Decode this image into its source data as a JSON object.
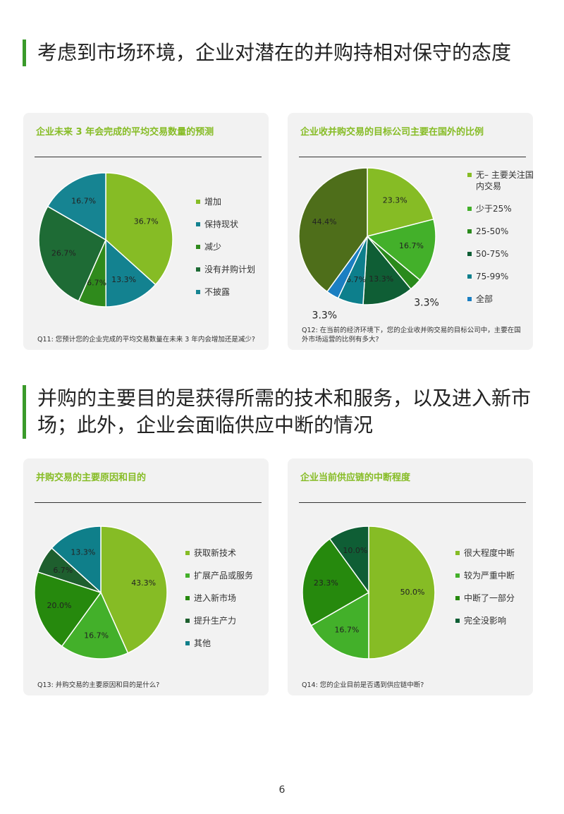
{
  "headings": [
    "考虑到市场环境，企业对潜在的并购持相对保守的态度",
    "并购的主要目的是获得所需的技术和服务，以及进入新市场；此外，企业会面临供应中断的情况"
  ],
  "chart_data": [
    {
      "type": "pie",
      "title": "企业未来 3 年会完成的平均交易数量的预测",
      "categories": [
        "增加",
        "保持现状",
        "减少",
        "没有并购计划",
        "不披露"
      ],
      "values": [
        36.7,
        13.3,
        6.7,
        26.7,
        16.7
      ],
      "value_labels": [
        "36.7%",
        "13.3%",
        "6.7%",
        "26.7%",
        "16.7%"
      ],
      "colors": [
        "#86bc25",
        "#138290",
        "#2f8a1c",
        "#1e6b35",
        "#168492"
      ],
      "note": "Q11: 您预计您的企业完成的平均交易数量在未来 3 年内会增加还是减少?"
    },
    {
      "type": "pie",
      "title": "企业收并购交易的目标公司主要在国外的比例",
      "categories": [
        "无– 主要关注国内交易",
        "少于25%",
        "25-50%",
        "50-75%",
        "75-99%",
        "全部",
        null
      ],
      "values": [
        23.3,
        16.7,
        3.3,
        13.3,
        6.7,
        3.3,
        44.4
      ],
      "value_labels": [
        "23.3%",
        "16.7%",
        "3.3%",
        "13.3%",
        "6.7%",
        "3.3%",
        "44.4%"
      ],
      "colors": [
        "#86bc25",
        "#43b02a",
        "#2a8a1c",
        "#0f5e35",
        "#0d7f8c",
        "#1b7fc2",
        "#4e6e1a"
      ],
      "note": "Q12: 在当前的经济环境下，您的企业收并购交易的目标公司中，主要在国外市场运营的比例有多大?"
    },
    {
      "type": "pie",
      "title": "并购交易的主要原因和目的",
      "categories": [
        "获取新技术",
        "扩展产品或服务",
        "进入新市场",
        "提升生产力",
        "其他"
      ],
      "values": [
        43.3,
        16.7,
        20.0,
        6.7,
        13.3
      ],
      "value_labels": [
        "43.3%",
        "16.7%",
        "20.0%",
        "6.7%",
        "13.3%"
      ],
      "colors": [
        "#86bc25",
        "#43b02a",
        "#26890d",
        "#1e5f2e",
        "#0f7f8a"
      ],
      "note": "Q13: 并购交易的主要原因和目的是什么?"
    },
    {
      "type": "pie",
      "title": "企业当前供应链的中断程度",
      "categories": [
        "很大程度中断",
        "较为严重中断",
        "中断了一部分",
        "完全没影响"
      ],
      "values": [
        50.0,
        16.7,
        23.3,
        10.0
      ],
      "value_labels": [
        "50.0%",
        "16.7%",
        "23.3%",
        "10.0%"
      ],
      "colors": [
        "#86bc25",
        "#43b02a",
        "#26890d",
        "#0f5e35"
      ],
      "note": "Q14: 您的企业目前是否遇到供应链中断?"
    }
  ],
  "page_number": 6
}
